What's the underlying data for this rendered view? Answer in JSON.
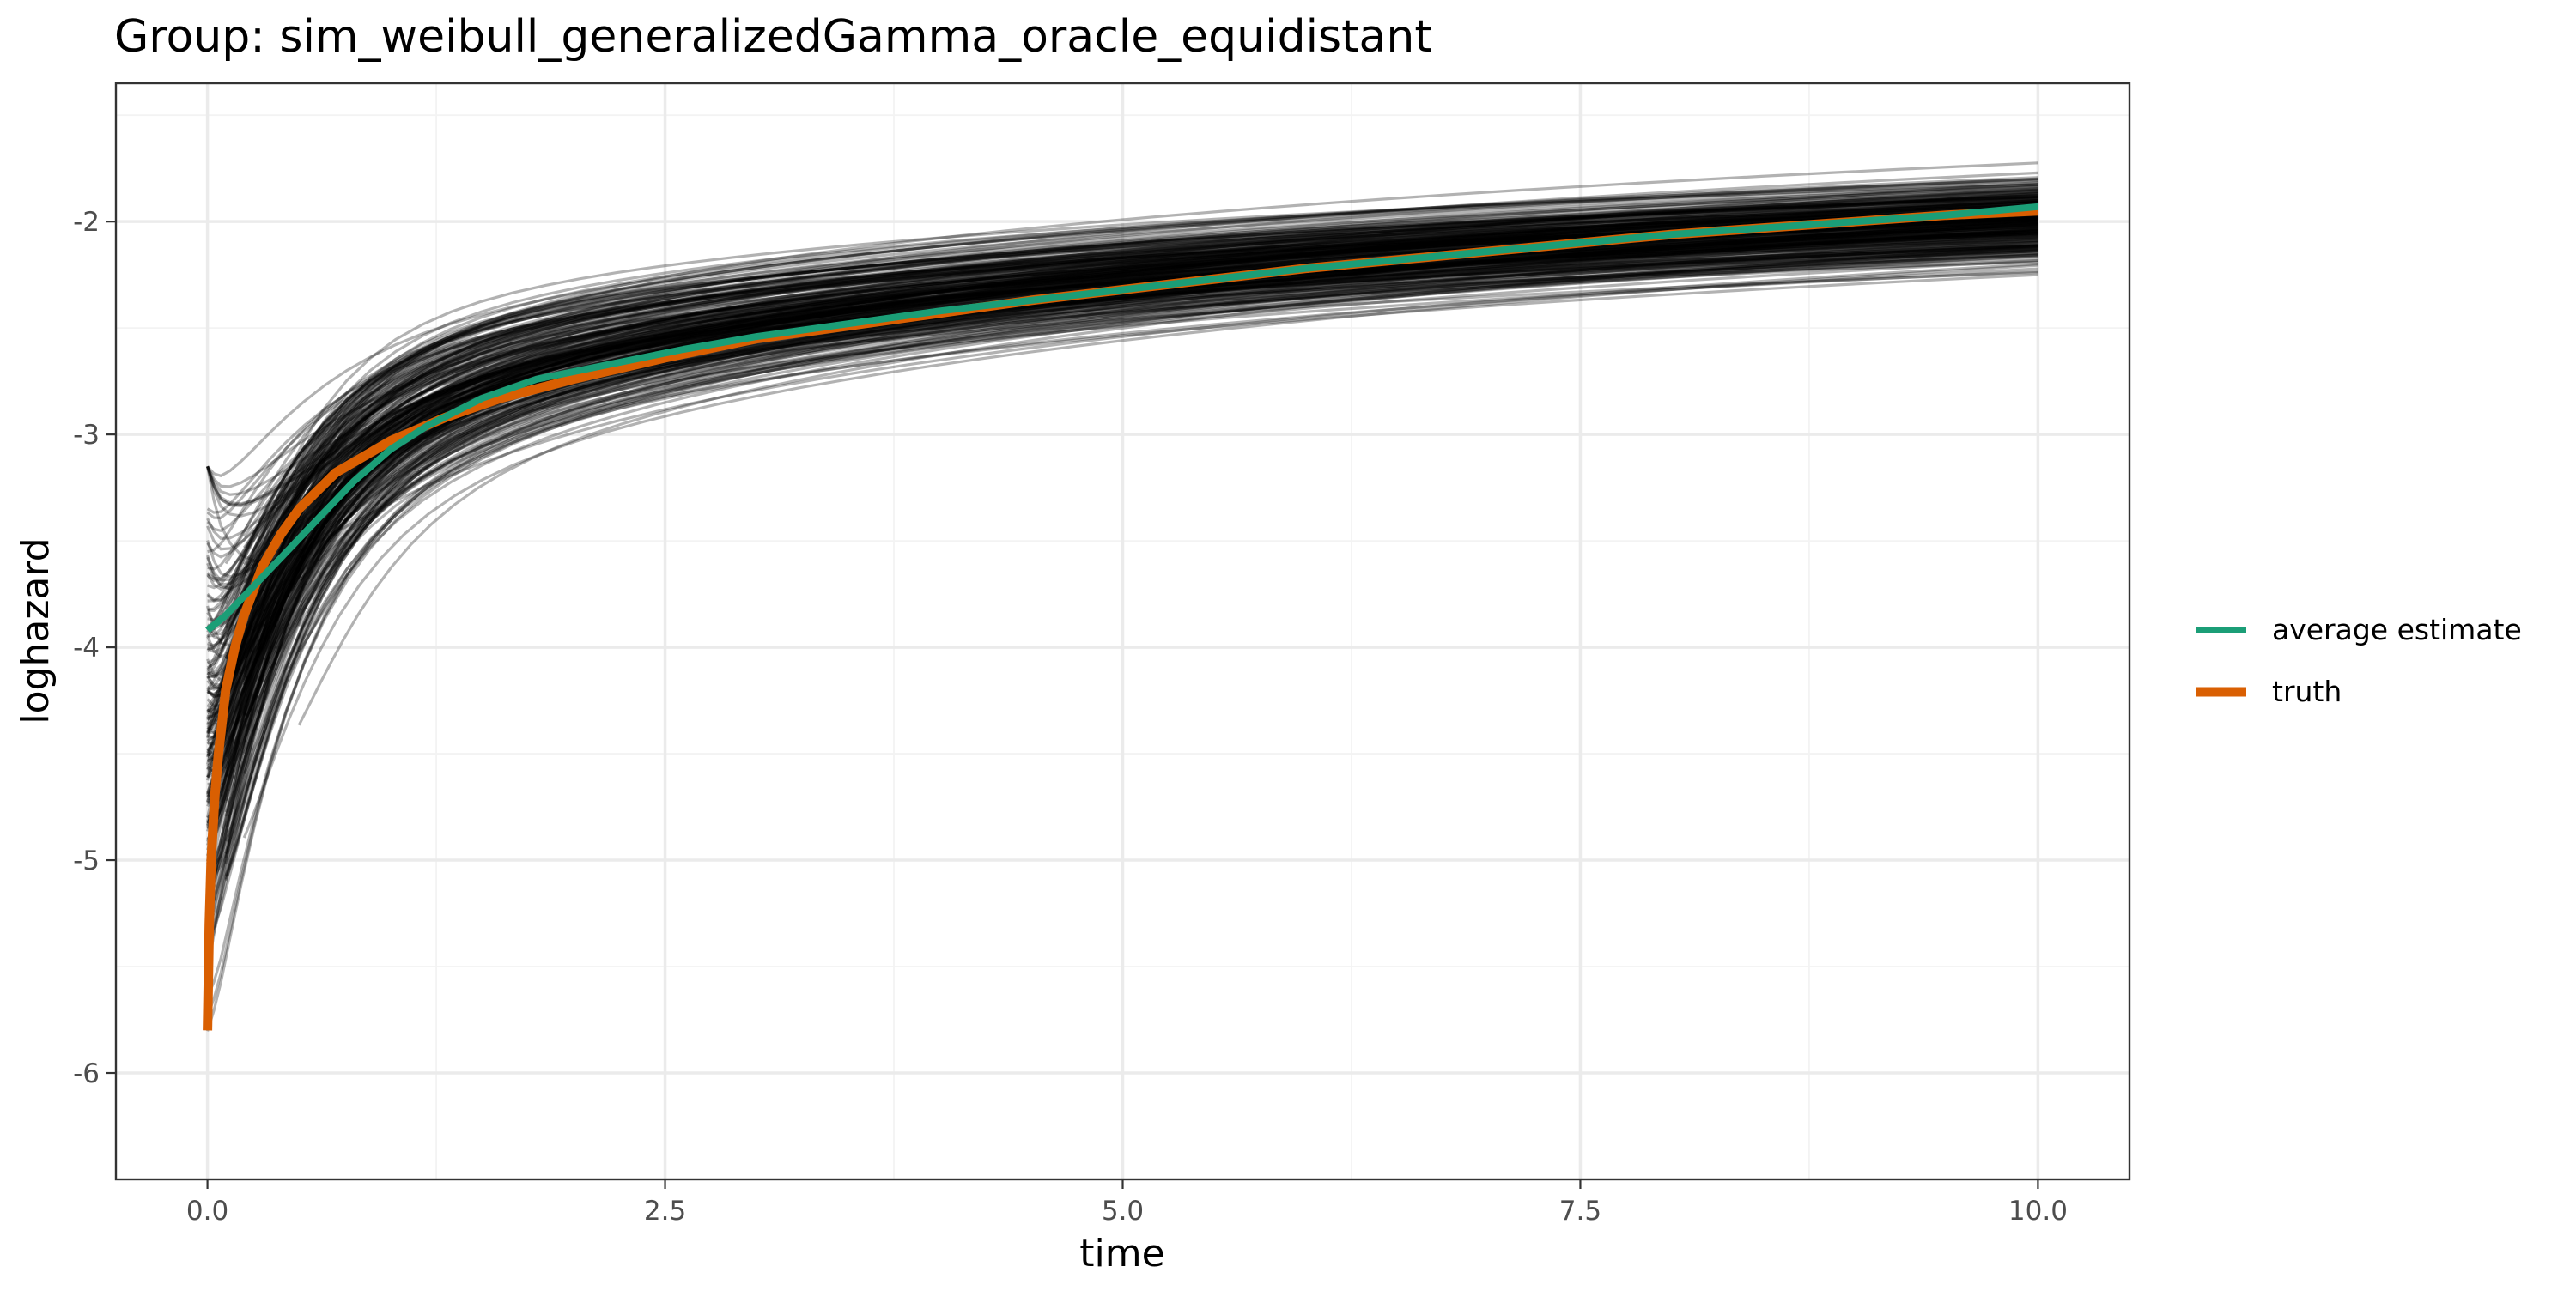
{
  "chart_data": {
    "type": "line",
    "title": "Group: sim_weibull_generalizedGamma_oracle_equidistant",
    "xlabel": "time",
    "ylabel": "loghazard",
    "xlim": [
      -0.5,
      10.5
    ],
    "ylim": [
      -6.5,
      -1.35
    ],
    "x_ticks": [
      0,
      2.5,
      5,
      7.5,
      10
    ],
    "x_tick_labels": [
      "0.0",
      "2.5",
      "5.0",
      "7.5",
      "10.0"
    ],
    "y_ticks": [
      -6,
      -5,
      -4,
      -3,
      -2
    ],
    "y_tick_labels": [
      "-6",
      "-5",
      "-4",
      "-3",
      "-2"
    ],
    "grid": true,
    "legend_position": "right",
    "background_curves": {
      "description_color": "#000000",
      "opacity": 0.3,
      "color": "#000000",
      "x_start": [
        0.0,
        0.1,
        0.2,
        0.5
      ],
      "x_end": 10.0,
      "y_start_range": [
        -6.3,
        -3.15
      ],
      "y_end_range": [
        -2.3,
        -1.55
      ]
    },
    "series": [
      {
        "name": "average estimate",
        "color": "#1b9e77",
        "x": [
          0.0,
          0.1,
          0.2,
          0.4,
          0.6,
          0.8,
          1.0,
          1.2,
          1.5,
          1.8,
          2.2,
          2.6,
          3.0,
          3.5,
          4.0,
          4.5,
          5.0,
          5.5,
          6.0,
          6.5,
          7.0,
          7.5,
          8.0,
          8.5,
          9.0,
          9.5,
          10.0
        ],
        "y": [
          -3.92,
          -3.85,
          -3.76,
          -3.58,
          -3.4,
          -3.22,
          -3.07,
          -2.96,
          -2.83,
          -2.74,
          -2.67,
          -2.6,
          -2.54,
          -2.48,
          -2.42,
          -2.37,
          -2.32,
          -2.27,
          -2.22,
          -2.18,
          -2.14,
          -2.1,
          -2.06,
          -2.03,
          -2.0,
          -1.97,
          -1.93
        ]
      },
      {
        "name": "truth",
        "color": "#d95f02",
        "x": [
          0.0,
          0.01,
          0.02,
          0.04,
          0.06,
          0.1,
          0.15,
          0.2,
          0.3,
          0.4,
          0.5,
          0.7,
          1.0,
          1.3,
          1.6,
          2.0,
          2.5,
          3.0,
          3.5,
          4.0,
          4.5,
          5.0,
          5.5,
          6.0,
          6.5,
          7.0,
          7.5,
          8.0,
          8.5,
          9.0,
          9.5,
          10.0
        ],
        "y": [
          -5.8,
          -5.3,
          -5.0,
          -4.7,
          -4.5,
          -4.2,
          -4.0,
          -3.85,
          -3.62,
          -3.47,
          -3.35,
          -3.18,
          -3.03,
          -2.92,
          -2.83,
          -2.74,
          -2.64,
          -2.55,
          -2.49,
          -2.43,
          -2.37,
          -2.32,
          -2.27,
          -2.22,
          -2.18,
          -2.14,
          -2.1,
          -2.06,
          -2.03,
          -2.0,
          -1.97,
          -1.95
        ]
      }
    ]
  }
}
